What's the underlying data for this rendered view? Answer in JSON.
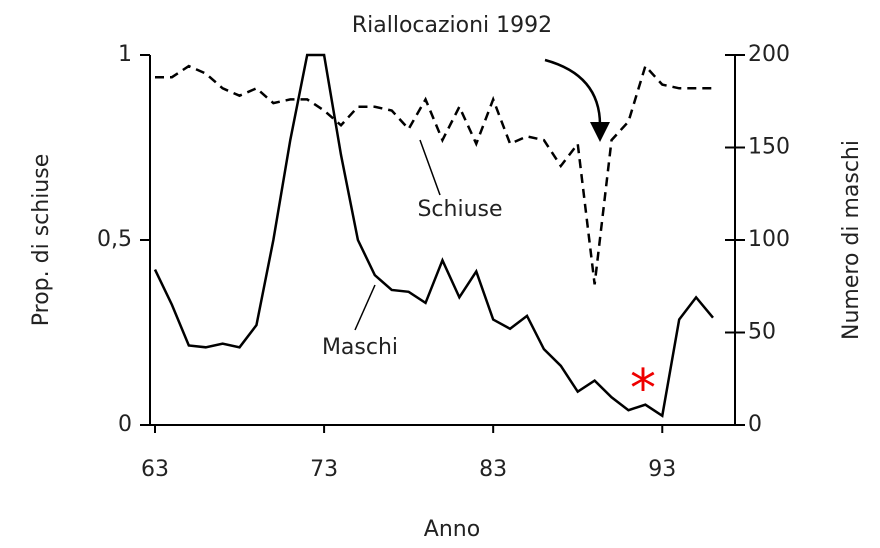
{
  "chart_data": {
    "type": "line",
    "x": [
      63,
      64,
      65,
      66,
      67,
      68,
      69,
      70,
      71,
      72,
      73,
      74,
      75,
      76,
      77,
      78,
      79,
      80,
      81,
      82,
      83,
      84,
      85,
      86,
      87,
      88,
      89,
      90,
      91,
      92,
      93,
      94,
      95,
      96
    ],
    "series": [
      {
        "name": "Schiuse",
        "color": "#000000",
        "linestyle": "dashed",
        "axis": "y",
        "values": [
          0.94,
          0.94,
          0.97,
          0.95,
          0.91,
          0.89,
          0.91,
          0.87,
          0.88,
          0.88,
          0.85,
          0.81,
          0.86,
          0.86,
          0.85,
          0.8,
          0.88,
          0.77,
          0.86,
          0.76,
          0.88,
          0.76,
          0.78,
          0.77,
          0.7,
          0.76,
          0.38,
          0.77,
          0.82,
          0.97,
          0.92,
          0.91,
          0.91,
          0.91
        ]
      },
      {
        "name": "Maschi",
        "color": "#000000",
        "linestyle": "solid",
        "axis": "y2",
        "values": [
          84,
          65,
          43,
          42,
          44,
          42,
          54,
          100,
          154,
          200,
          200,
          146,
          100,
          81,
          73,
          72,
          66,
          89,
          69,
          83,
          57,
          52,
          59,
          41,
          32,
          18,
          24,
          15,
          8,
          11,
          5,
          57,
          69,
          58
        ]
      }
    ],
    "xlabel": "Anno",
    "ylabel": "Prop. di schiuse",
    "y2label": "Numero di maschi",
    "xlim": [
      63,
      96
    ],
    "xticks": [
      63,
      73,
      83,
      93
    ],
    "ylim": [
      0,
      1
    ],
    "yticks": [
      0,
      {
        "value": 0.5,
        "label": "0,5"
      },
      1
    ],
    "y2lim": [
      0,
      200
    ],
    "y2ticks": [
      0,
      50,
      100,
      150,
      200
    ],
    "annotations": [
      "Riallocazioni 1992",
      "*"
    ]
  }
}
